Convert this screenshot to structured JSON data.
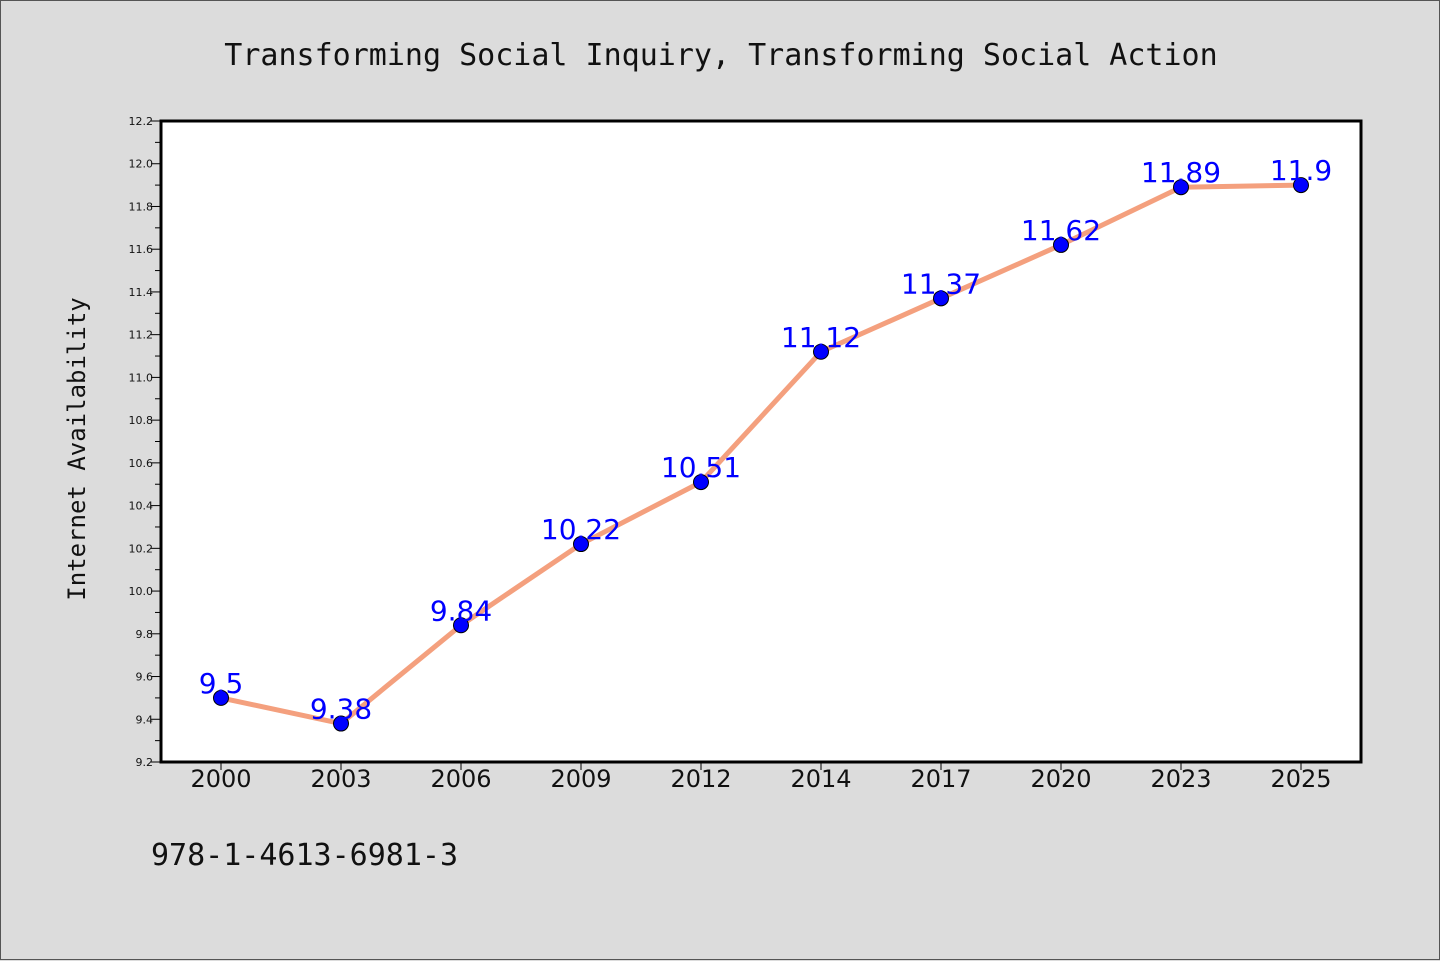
{
  "chart_data": {
    "type": "line",
    "title": "Transforming Social Inquiry, Transforming Social Action",
    "xlabel": "",
    "ylabel": "Internet Availability",
    "categories": [
      "2000",
      "2003",
      "2006",
      "2009",
      "2012",
      "2014",
      "2017",
      "2020",
      "2023",
      "2025"
    ],
    "series": [
      {
        "values": [
          9.5,
          9.38,
          9.84,
          10.22,
          10.51,
          11.12,
          11.37,
          11.62,
          11.89,
          11.9
        ],
        "labels": [
          "9.5",
          "9.38",
          "9.84",
          "10.22",
          "10.51",
          "11.12",
          "11.37",
          "11.62",
          "11.89",
          "11.9"
        ]
      }
    ],
    "ylim": [
      9.2,
      12.2
    ],
    "yticks": [
      "9.2",
      "9.4",
      "9.6",
      "9.8",
      "10.0",
      "10.2",
      "10.4",
      "10.6",
      "10.8",
      "11.0",
      "11.2",
      "11.4",
      "11.6",
      "11.8",
      "12.0",
      "12.2"
    ],
    "grid": false,
    "colors": {
      "line": "#f4a07e",
      "marker": "#0000ff",
      "label": "#0000ff",
      "background": "#dcdcdc",
      "plot_background": "#ffffff"
    }
  },
  "footer": {
    "isbn": "978-1-4613-6981-3"
  }
}
